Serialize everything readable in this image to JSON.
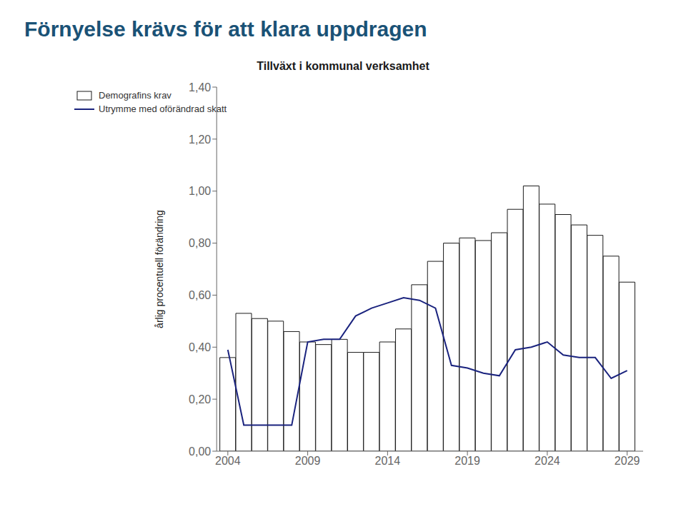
{
  "chart_data": {
    "type": "bar",
    "title": "Förnyelse krävs för att klara uppdragen",
    "subtitle": "Tillväxt i kommunal verksamhet",
    "ylabel": "årlig procentuell förändring",
    "x": [
      2004,
      2005,
      2006,
      2007,
      2008,
      2009,
      2010,
      2011,
      2012,
      2013,
      2014,
      2015,
      2016,
      2017,
      2018,
      2019,
      2020,
      2021,
      2022,
      2023,
      2024,
      2025,
      2026,
      2027,
      2028,
      2029
    ],
    "series": [
      {
        "name": "Demografins krav",
        "type": "bar",
        "color": "#ffffff",
        "values": [
          0.36,
          0.53,
          0.51,
          0.5,
          0.46,
          0.42,
          0.41,
          0.43,
          0.38,
          0.38,
          0.42,
          0.47,
          0.64,
          0.73,
          0.8,
          0.82,
          0.81,
          0.84,
          0.93,
          1.02,
          0.95,
          0.91,
          0.87,
          0.83,
          0.75,
          0.65
        ]
      },
      {
        "name": "Utrymme med oförändrad skatt",
        "type": "line",
        "color": "#1a237e",
        "values": [
          0.39,
          0.1,
          0.1,
          0.1,
          0.1,
          0.42,
          0.43,
          0.43,
          0.52,
          0.55,
          0.57,
          0.59,
          0.58,
          0.55,
          0.33,
          0.32,
          0.3,
          0.29,
          0.39,
          0.4,
          0.42,
          0.37,
          0.36,
          0.36,
          0.28,
          0.31
        ]
      }
    ],
    "xlim": [
      2003.3,
      2030.0
    ],
    "xticks": [
      2004,
      2009,
      2014,
      2019,
      2024,
      2029
    ],
    "ylim": [
      0.0,
      1.4
    ],
    "yticks": [
      {
        "value": 0.0,
        "label": "0,00"
      },
      {
        "value": 0.2,
        "label": "0,20"
      },
      {
        "value": 0.4,
        "label": "0,40"
      },
      {
        "value": 0.6,
        "label": "0,60"
      },
      {
        "value": 0.8,
        "label": "0,80"
      },
      {
        "value": 1.0,
        "label": "1,00"
      },
      {
        "value": 1.2,
        "label": "1,20"
      },
      {
        "value": 1.4,
        "label": "1,40"
      }
    ],
    "grid": false,
    "legend": "upper left"
  }
}
